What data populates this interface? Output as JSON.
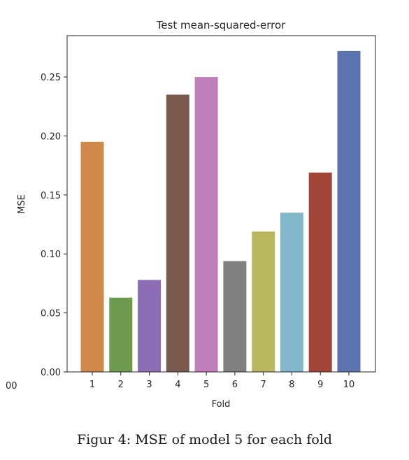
{
  "chart_data": {
    "type": "bar",
    "title": "Test mean-squared-error",
    "xlabel": "Fold",
    "ylabel": "MSE",
    "categories": [
      "1",
      "2",
      "3",
      "4",
      "5",
      "6",
      "7",
      "8",
      "9",
      "10"
    ],
    "values": [
      0.195,
      0.063,
      0.078,
      0.235,
      0.25,
      0.094,
      0.119,
      0.135,
      0.169,
      0.272
    ],
    "colors": [
      "#d0884b",
      "#6e9a4f",
      "#8d6db5",
      "#7b5a4e",
      "#c07fba",
      "#808080",
      "#b9b85e",
      "#83b7cb",
      "#a04437",
      "#5c74ad"
    ],
    "ylim": [
      0,
      0.285
    ],
    "yticks": [
      "0.00",
      "0.05",
      "0.10",
      "0.15",
      "0.20",
      "0.25"
    ],
    "clipped_left_label": "00",
    "grid": false
  },
  "caption": "Figur 4: MSE of model 5 for each fold"
}
